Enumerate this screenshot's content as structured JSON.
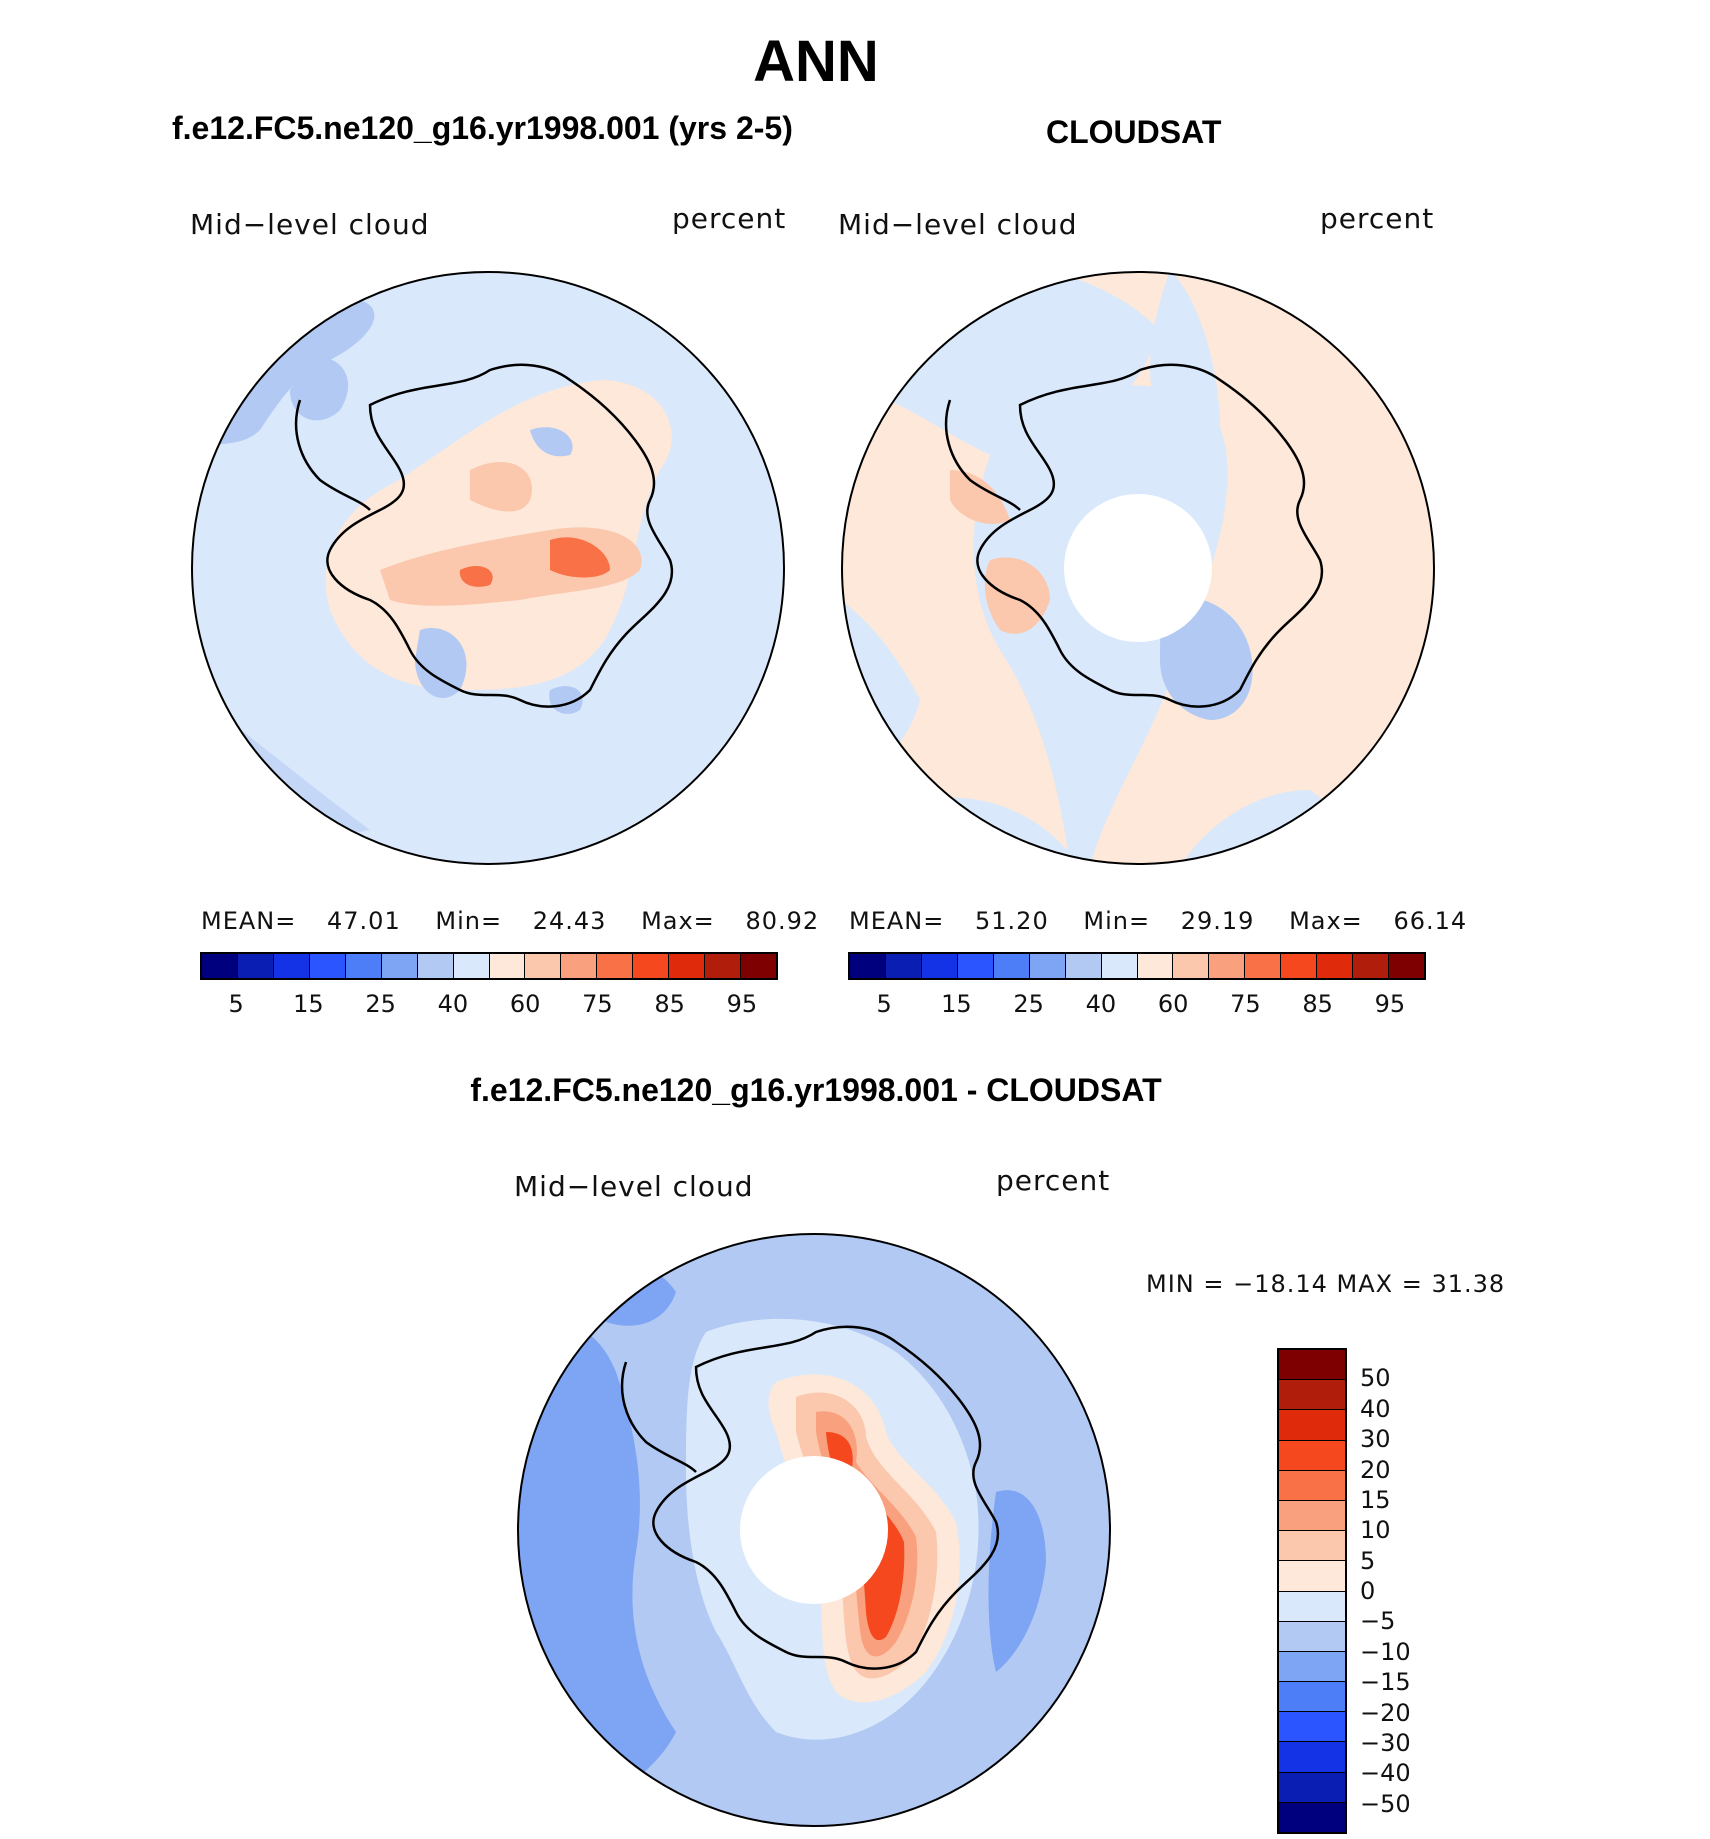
{
  "title": "ANN",
  "panels": [
    {
      "id": "model",
      "title": "f.e12.FC5.ne120_g16.yr1998.001 (yrs 2-5)",
      "left_label": "Mid−level cloud",
      "right_label": "percent",
      "stats": {
        "mean_label": "MEAN=",
        "mean": "47.01",
        "min_label": "Min=",
        "min": "24.43",
        "max_label": "Max=",
        "max": "80.92"
      },
      "colorbar": {
        "colors": [
          "#00007f",
          "#0a1eb4",
          "#1432e6",
          "#2a55ff",
          "#4d7df7",
          "#7ea4f4",
          "#b2c9f4",
          "#d9e9fb",
          "#fde8d9",
          "#fbc7ad",
          "#f9a07f",
          "#f87147",
          "#f5481e",
          "#e02a0c",
          "#b01d0b",
          "#7f0000"
        ],
        "tick_labels": [
          "5",
          "15",
          "25",
          "40",
          "60",
          "75",
          "85",
          "95"
        ]
      }
    },
    {
      "id": "obs",
      "title": "CLOUDSAT",
      "left_label": "Mid−level cloud",
      "right_label": "percent",
      "stats": {
        "mean_label": "MEAN=",
        "mean": "51.20",
        "min_label": "Min=",
        "min": "29.19",
        "max_label": "Max=",
        "max": "66.14"
      },
      "colorbar": {
        "colors": [
          "#00007f",
          "#0a1eb4",
          "#1432e6",
          "#2a55ff",
          "#4d7df7",
          "#7ea4f4",
          "#b2c9f4",
          "#d9e9fb",
          "#fde8d9",
          "#fbc7ad",
          "#f9a07f",
          "#f87147",
          "#f5481e",
          "#e02a0c",
          "#b01d0b",
          "#7f0000"
        ],
        "tick_labels": [
          "5",
          "15",
          "25",
          "40",
          "60",
          "75",
          "85",
          "95"
        ]
      }
    },
    {
      "id": "diff",
      "title": "f.e12.FC5.ne120_g16.yr1998.001 - CLOUDSAT",
      "left_label": "Mid−level cloud",
      "right_label": "percent",
      "minmax": "MIN =  −18.14  MAX =    31.38",
      "colorbar": {
        "colors": [
          "#7f0000",
          "#b01d0b",
          "#e02a0c",
          "#f5481e",
          "#f87147",
          "#f9a07f",
          "#fbc7ad",
          "#fde8d9",
          "#d9e9fb",
          "#b2c9f4",
          "#7ea4f4",
          "#4d7df7",
          "#2a55ff",
          "#1432e6",
          "#0a1eb4",
          "#00007f"
        ],
        "tick_labels": [
          "50",
          "40",
          "30",
          "20",
          "15",
          "10",
          "5",
          "0",
          "−5",
          "−10",
          "−15",
          "−20",
          "−30",
          "−40",
          "−50"
        ]
      }
    }
  ],
  "palette": {
    "ocean_model": "#d9e9fb",
    "ocean_obs": "#fde8d9",
    "land_pos_light": "#fde8d9",
    "land_pos_mid": "#fbc7ad",
    "land_pos_strong": "#f87147",
    "neg_light": "#b2c9f4",
    "neg_mid": "#7ea4f4",
    "coast": "#000000",
    "missing": "#ffffff"
  }
}
